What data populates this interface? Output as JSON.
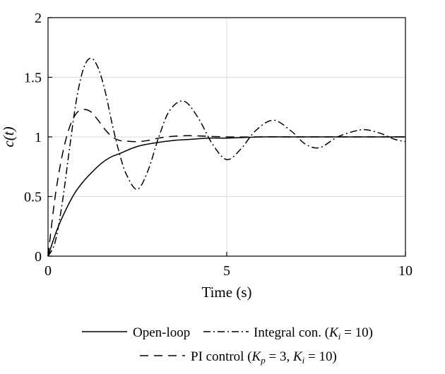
{
  "chart_data": {
    "type": "line",
    "xlabel": "Time (s)",
    "ylabel": "c(t)",
    "xlim": [
      0,
      10
    ],
    "ylim": [
      0,
      2
    ],
    "xticks": [
      "0",
      "5",
      "10"
    ],
    "yticks": [
      "0",
      "0.5",
      "1",
      "1.5",
      "2"
    ],
    "grid": true,
    "legend_position": "bottom-center",
    "series": [
      {
        "name": "Open-loop",
        "line_style": "solid",
        "x": [
          0,
          0.25,
          0.5,
          0.75,
          1,
          1.25,
          1.5,
          1.75,
          2,
          2.5,
          3,
          3.5,
          4,
          4.5,
          5,
          6,
          7,
          8,
          9,
          10
        ],
        "y": [
          0,
          0.22,
          0.39,
          0.53,
          0.63,
          0.71,
          0.78,
          0.83,
          0.86,
          0.92,
          0.95,
          0.97,
          0.98,
          0.99,
          0.99,
          1.0,
          1.0,
          1.0,
          1.0,
          1.0
        ]
      },
      {
        "name": "Integral con. (K_i = 10)",
        "line_style": "dashdot",
        "x": [
          0,
          0.2,
          0.4,
          0.6,
          0.8,
          1.0,
          1.2,
          1.4,
          1.6,
          1.8,
          2.0,
          2.2,
          2.5,
          2.8,
          3.1,
          3.4,
          3.8,
          4.2,
          4.6,
          5.0,
          5.4,
          5.8,
          6.3,
          6.8,
          7.2,
          7.6,
          8.1,
          8.6,
          8.9,
          9.3,
          9.7,
          10.0
        ],
        "y": [
          0,
          0.12,
          0.45,
          0.9,
          1.32,
          1.58,
          1.66,
          1.58,
          1.38,
          1.1,
          0.86,
          0.68,
          0.56,
          0.72,
          1.0,
          1.22,
          1.3,
          1.16,
          0.94,
          0.81,
          0.9,
          1.05,
          1.14,
          1.05,
          0.94,
          0.91,
          1.0,
          1.05,
          1.06,
          1.03,
          0.98,
          0.96
        ]
      },
      {
        "name": "PI control (K_p = 3, K_i = 10)",
        "line_style": "dashed",
        "x": [
          0,
          0.2,
          0.4,
          0.6,
          0.8,
          1.0,
          1.2,
          1.4,
          1.6,
          1.8,
          2.0,
          2.2,
          2.5,
          2.8,
          3.1,
          3.5,
          4.0,
          5.0,
          6.0,
          7.0,
          8.0,
          9.0,
          10.0
        ],
        "y": [
          0,
          0.5,
          0.85,
          1.08,
          1.2,
          1.23,
          1.21,
          1.14,
          1.06,
          1.0,
          0.97,
          0.965,
          0.96,
          0.97,
          0.99,
          1.005,
          1.01,
          1.0,
          1.0,
          1.0,
          1.0,
          1.0,
          1.0
        ]
      }
    ],
    "legend": {
      "open_loop": "Open-loop",
      "integral_prefix": "Integral con. (",
      "integral_suffix": " = 10)",
      "pi_prefix": "PI control (",
      "pi_mid": " = 3, ",
      "pi_suffix": " = 10)",
      "K": "K",
      "sub_i": "i",
      "sub_p": "p"
    }
  }
}
